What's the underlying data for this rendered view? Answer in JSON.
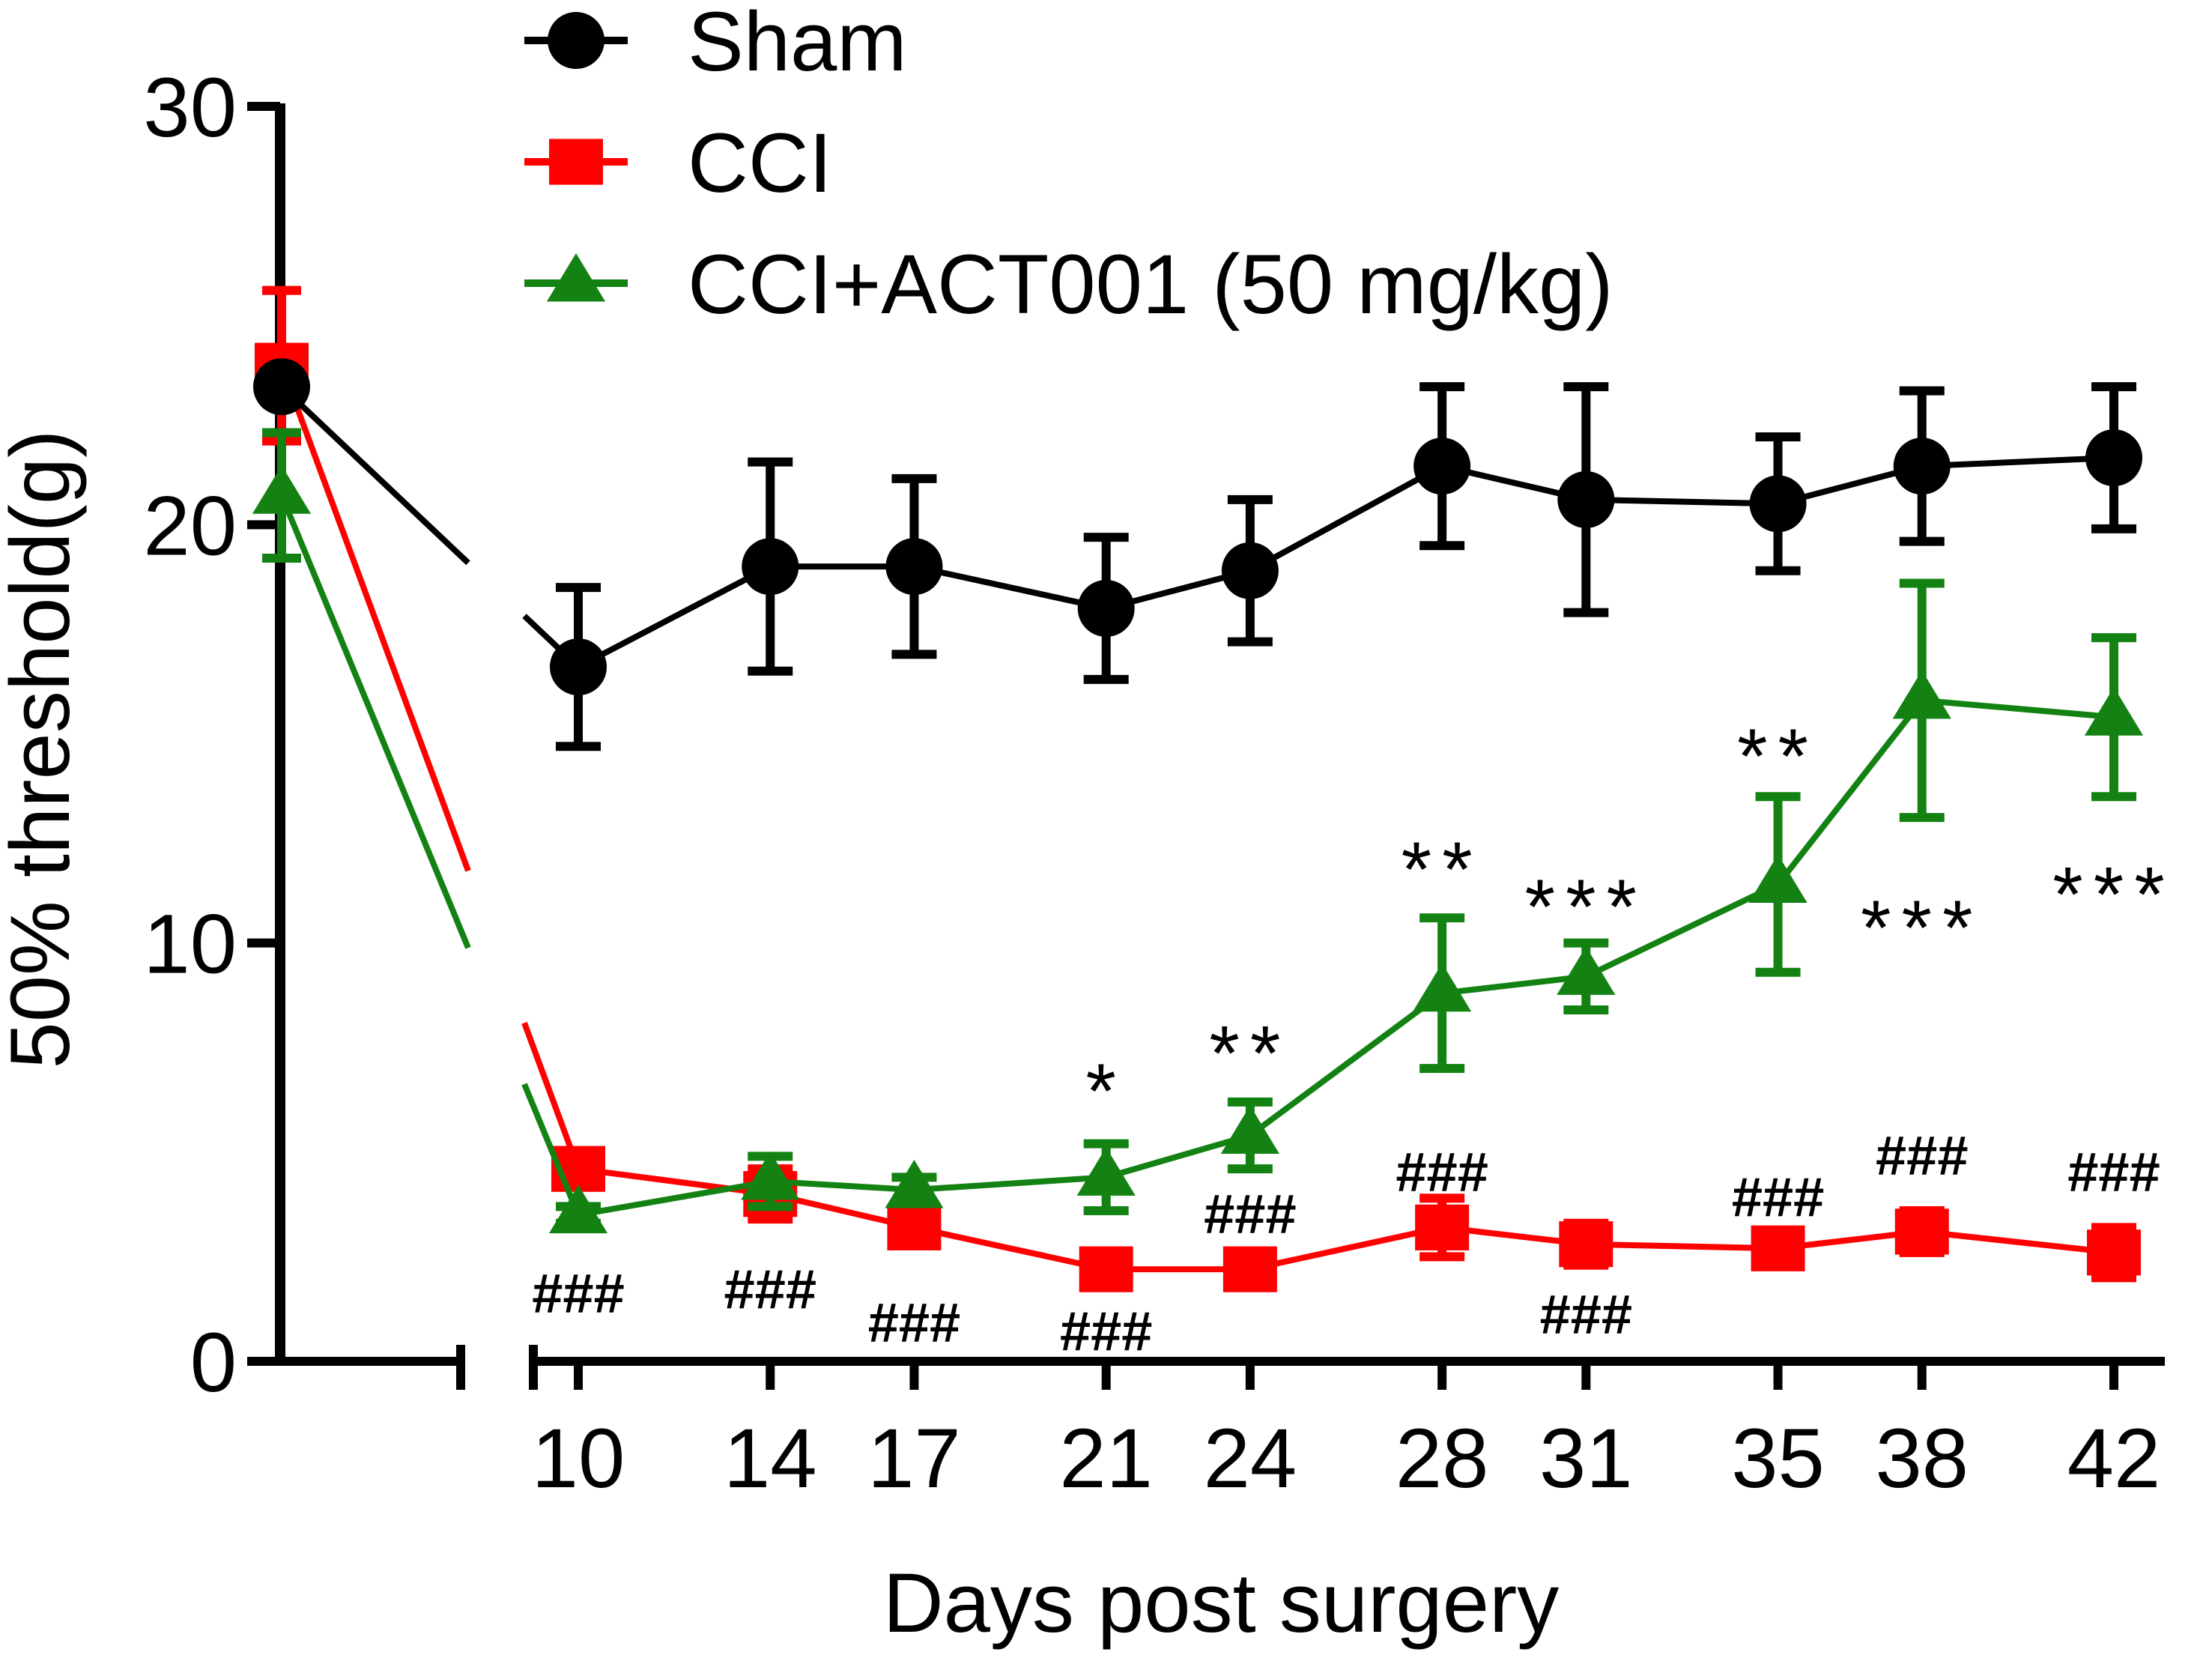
{
  "chart_data": {
    "type": "line",
    "title": "",
    "xlabel": "Days post surgery",
    "ylabel": "50% threshold(g)",
    "ylim": [
      0,
      30
    ],
    "yticks": [
      0,
      10,
      20,
      30
    ],
    "xticks": [
      10,
      14,
      17,
      21,
      24,
      28,
      31,
      35,
      38,
      42
    ],
    "x_axis_break": "baseline segment (day 0) separated from day 10-42 segment",
    "legend_position": "top",
    "grid": false,
    "series": [
      {
        "name": "Sham",
        "color": "#000000",
        "marker": "circle",
        "baseline": {
          "y": 23.3,
          "err": 0.2
        },
        "x": [
          10,
          14,
          17,
          21,
          24,
          28,
          31,
          35,
          38,
          42
        ],
        "y": [
          16.6,
          19.0,
          19.0,
          18.0,
          18.9,
          21.4,
          20.6,
          20.5,
          21.4,
          21.6
        ],
        "err": [
          1.9,
          2.5,
          2.1,
          1.7,
          1.7,
          1.9,
          2.7,
          1.6,
          1.8,
          1.7
        ]
      },
      {
        "name": "CCI",
        "color": "#ff0000",
        "marker": "square",
        "baseline": {
          "y": 23.8,
          "err": 1.8
        },
        "x": [
          10,
          14,
          17,
          21,
          24,
          28,
          31,
          35,
          38,
          42
        ],
        "y": [
          4.6,
          4.0,
          3.2,
          2.2,
          2.2,
          3.2,
          2.8,
          2.7,
          3.1,
          2.6
        ],
        "err": [
          0.3,
          0.6,
          0.4,
          0.3,
          0.3,
          0.7,
          0.5,
          0.3,
          0.5,
          0.6
        ]
      },
      {
        "name": "CCI+ACT001 (50 mg/kg)",
        "color": "#138213",
        "marker": "triangle",
        "baseline": {
          "y": 20.7,
          "err": 1.5
        },
        "x": [
          10,
          14,
          17,
          21,
          24,
          28,
          31,
          35,
          38,
          42
        ],
        "y": [
          3.5,
          4.3,
          4.1,
          4.4,
          5.4,
          8.8,
          9.2,
          11.4,
          15.8,
          15.4
        ],
        "err": [
          0.2,
          0.6,
          0.3,
          0.8,
          0.8,
          1.8,
          0.8,
          2.1,
          2.8,
          1.9
        ]
      }
    ],
    "annotations": [
      {
        "text": "###",
        "x": 10,
        "y": 1.7
      },
      {
        "text": "###",
        "x": 14,
        "y": 1.8
      },
      {
        "text": "###",
        "x": 17,
        "y": 1.0
      },
      {
        "text": "###",
        "x": 21,
        "y": 0.8
      },
      {
        "text": "###",
        "x": 24,
        "y": 3.6
      },
      {
        "text": "###",
        "x": 28,
        "y": 4.6
      },
      {
        "text": "###",
        "x": 31,
        "y": 1.2
      },
      {
        "text": "###",
        "x": 35,
        "y": 4.0
      },
      {
        "text": "###",
        "x": 38,
        "y": 5.0
      },
      {
        "text": "###",
        "x": 42,
        "y": 4.6
      },
      {
        "text": "*",
        "x": 21,
        "y": 6.9
      },
      {
        "text": "**",
        "x": 24,
        "y": 7.8
      },
      {
        "text": "**",
        "x": 28,
        "y": 12.2
      },
      {
        "text": "***",
        "x": 31,
        "y": 11.3
      },
      {
        "text": "**",
        "x": 35,
        "y": 14.9
      },
      {
        "text": "***",
        "x": 38,
        "y": 10.8
      },
      {
        "text": "***",
        "x": 42,
        "y": 11.6
      }
    ]
  }
}
